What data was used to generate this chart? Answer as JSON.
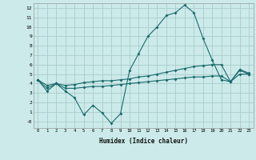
{
  "xlabel": "Humidex (Indice chaleur)",
  "bg_color": "#cceaea",
  "grid_color": "#aacccc",
  "line_color": "#1a6b6b",
  "x_values": [
    0,
    1,
    2,
    3,
    4,
    5,
    6,
    7,
    8,
    9,
    10,
    11,
    12,
    13,
    14,
    15,
    16,
    17,
    18,
    19,
    20,
    21,
    22,
    23
  ],
  "series1": [
    4.4,
    3.2,
    4.0,
    3.2,
    2.5,
    0.7,
    1.7,
    0.9,
    -0.2,
    0.8,
    5.4,
    7.2,
    9.0,
    10.0,
    11.2,
    11.5,
    12.3,
    11.5,
    8.8,
    6.5,
    4.4,
    4.2,
    5.4,
    5.0
  ],
  "series2": [
    4.4,
    3.8,
    4.0,
    3.8,
    3.9,
    4.1,
    4.2,
    4.3,
    4.3,
    4.4,
    4.5,
    4.7,
    4.8,
    5.0,
    5.2,
    5.4,
    5.6,
    5.8,
    5.9,
    6.0,
    6.0,
    4.2,
    5.5,
    5.1
  ],
  "series3": [
    4.4,
    3.5,
    4.0,
    3.5,
    3.5,
    3.6,
    3.7,
    3.7,
    3.8,
    3.9,
    4.0,
    4.1,
    4.2,
    4.3,
    4.4,
    4.5,
    4.6,
    4.7,
    4.7,
    4.8,
    4.8,
    4.2,
    5.0,
    5.0
  ],
  "ylim": [
    -0.7,
    12.5
  ],
  "xlim": [
    -0.5,
    23.5
  ],
  "yticks": [
    0,
    1,
    2,
    3,
    4,
    5,
    6,
    7,
    8,
    9,
    10,
    11,
    12
  ],
  "xticks": [
    0,
    1,
    2,
    3,
    4,
    5,
    6,
    7,
    8,
    9,
    10,
    11,
    12,
    13,
    14,
    15,
    16,
    17,
    18,
    19,
    20,
    21,
    22,
    23
  ]
}
